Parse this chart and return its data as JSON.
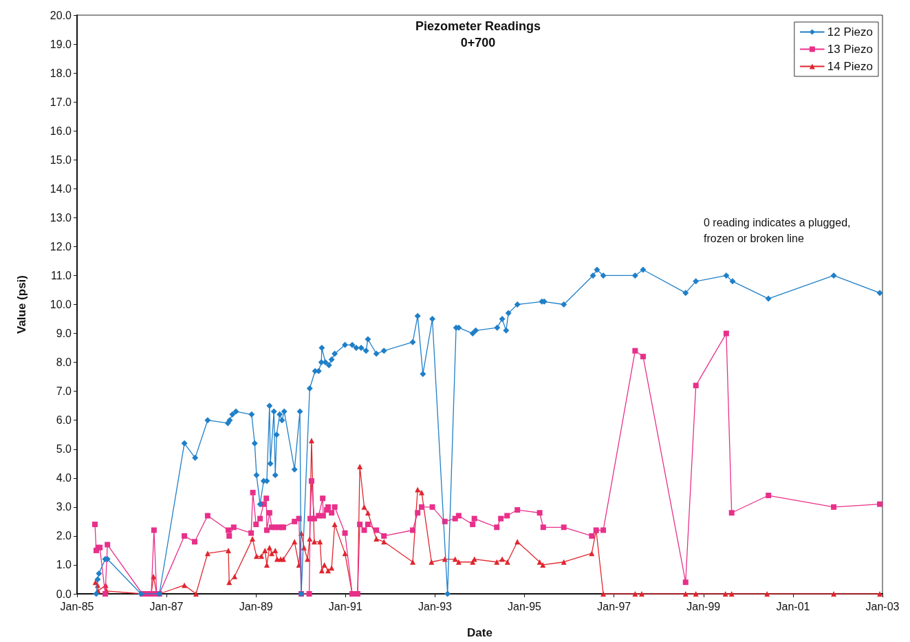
{
  "chart_data": {
    "type": "line",
    "title": "Piezometer Readings",
    "subtitle": "0+700",
    "xlabel": "Date",
    "ylabel": "Value (psi)",
    "annotations": [
      "0 reading indicates a plugged, frozen or broken line"
    ],
    "xlim": [
      "1985-01-01",
      "2003-01-01"
    ],
    "xticks": [
      {
        "value": "1985-01-01",
        "label": "Jan-85"
      },
      {
        "value": "1987-01-01",
        "label": "Jan-87"
      },
      {
        "value": "1989-01-01",
        "label": "Jan-89"
      },
      {
        "value": "1991-01-01",
        "label": "Jan-91"
      },
      {
        "value": "1993-01-01",
        "label": "Jan-93"
      },
      {
        "value": "1995-01-01",
        "label": "Jan-95"
      },
      {
        "value": "1997-01-01",
        "label": "Jan-97"
      },
      {
        "value": "1999-01-01",
        "label": "Jan-99"
      },
      {
        "value": "2001-01-01",
        "label": "Jan-01"
      },
      {
        "value": "2003-01-01",
        "label": "Jan-03"
      }
    ],
    "ylim": [
      0,
      20
    ],
    "yticks": [
      {
        "value": 0,
        "label": "0.0"
      },
      {
        "value": 1,
        "label": "1.0"
      },
      {
        "value": 2,
        "label": "2.0"
      },
      {
        "value": 3,
        "label": "3.0"
      },
      {
        "value": 4,
        "label": "4.0"
      },
      {
        "value": 5,
        "label": "5.0"
      },
      {
        "value": 6,
        "label": "6.0"
      },
      {
        "value": 7,
        "label": "7.0"
      },
      {
        "value": 8,
        "label": "8.0"
      },
      {
        "value": 9,
        "label": "9.0"
      },
      {
        "value": 10,
        "label": "10.0"
      },
      {
        "value": 11,
        "label": "11.0"
      },
      {
        "value": 12,
        "label": "12.0"
      },
      {
        "value": 13,
        "label": "13.0"
      },
      {
        "value": 14,
        "label": "14.0"
      },
      {
        "value": 15,
        "label": "15.0"
      },
      {
        "value": 16,
        "label": "16.0"
      },
      {
        "value": 17,
        "label": "17.0"
      },
      {
        "value": 18,
        "label": "18.0"
      },
      {
        "value": 19,
        "label": "19.0"
      },
      {
        "value": 20,
        "label": "20.0"
      }
    ],
    "grid": false,
    "legend": "top right",
    "line_style": "solid",
    "series": [
      {
        "name": "12 Piezo",
        "color": "#1f7fc8",
        "marker": "diamond",
        "x": [
          "1985-06-07",
          "1985-06-18",
          "1985-06-29",
          "1985-08-19",
          "1985-09-06",
          "1986-06-07",
          "1986-11-04",
          "1987-05-27",
          "1987-08-23",
          "1987-12-03",
          "1988-05-16",
          "1988-05-31",
          "1988-06-22",
          "1988-07-21",
          "1988-11-26",
          "1988-12-21",
          "1989-01-05",
          "1989-02-03",
          "1989-03-04",
          "1989-03-30",
          "1989-04-21",
          "1989-04-28",
          "1989-05-27",
          "1989-06-07",
          "1989-06-18",
          "1989-07-13",
          "1989-08-01",
          "1989-08-19",
          "1989-11-11",
          "1989-12-25",
          "1990-01-05",
          "1990-03-15",
          "1990-04-28",
          "1990-05-27",
          "1990-06-18",
          "1990-06-22",
          "1990-07-21",
          "1990-08-19",
          "1990-09-10",
          "1990-10-05",
          "1990-12-28",
          "1991-02-25",
          "1991-03-30",
          "1991-05-09",
          "1991-06-18",
          "1991-07-03",
          "1991-09-10",
          "1991-11-11",
          "1992-07-03",
          "1992-08-12",
          "1992-09-24",
          "1992-12-10",
          "1993-04-13",
          "1993-06-22",
          "1993-07-13",
          "1993-11-04",
          "1993-11-29",
          "1994-05-23",
          "1994-07-03",
          "1994-08-04",
          "1994-08-23",
          "1994-11-04",
          "1995-05-23",
          "1995-06-11",
          "1995-11-18",
          "1996-07-13",
          "1996-08-15",
          "1996-10-05",
          "1997-06-22",
          "1997-08-26",
          "1998-08-08",
          "1998-10-31",
          "1999-07-06",
          "1999-08-26",
          "2000-06-14",
          "2001-11-29",
          "2002-12-10"
        ],
        "values": [
          0,
          0.5,
          0.7,
          1.2,
          1.2,
          0,
          0,
          5.2,
          4.7,
          6.0,
          5.9,
          6.0,
          6.2,
          6.3,
          6.2,
          5.2,
          4.1,
          3.1,
          3.9,
          3.9,
          6.5,
          4.5,
          6.3,
          4.1,
          5.5,
          6.2,
          6.0,
          6.3,
          4.3,
          6.3,
          0,
          7.1,
          7.7,
          7.7,
          8.0,
          8.5,
          8.0,
          7.9,
          8.1,
          8.3,
          8.6,
          8.6,
          8.5,
          8.5,
          8.4,
          8.8,
          8.3,
          8.4,
          8.7,
          9.6,
          7.6,
          9.5,
          0,
          9.2,
          9.2,
          9.0,
          9.1,
          9.2,
          9.5,
          9.1,
          9.7,
          10.0,
          10.1,
          10.1,
          10.0,
          11.0,
          11.2,
          11.0,
          11.0,
          11.2,
          10.4,
          10.8,
          11.0,
          10.8,
          10.2,
          11.0,
          10.4
        ]
      },
      {
        "name": "13 Piezo",
        "color": "#e8308a",
        "marker": "square",
        "x": [
          "1985-05-27",
          "1985-06-07",
          "1985-06-22",
          "1985-07-06",
          "1985-08-19",
          "1985-09-06",
          "1986-06-18",
          "1986-07-17",
          "1986-08-30",
          "1986-09-21",
          "1986-10-13",
          "1986-11-04",
          "1987-05-27",
          "1987-08-19",
          "1987-12-03",
          "1988-05-20",
          "1988-05-27",
          "1988-07-03",
          "1988-11-22",
          "1988-12-06",
          "1989-01-01",
          "1989-02-03",
          "1989-03-04",
          "1989-03-26",
          "1989-03-30",
          "1989-04-21",
          "1989-05-09",
          "1989-06-07",
          "1989-07-03",
          "1989-08-01",
          "1989-08-12",
          "1989-11-11",
          "1989-12-17",
          "1990-01-05",
          "1990-03-11",
          "1990-03-19",
          "1990-03-30",
          "1990-04-21",
          "1990-05-27",
          "1990-06-29",
          "1990-07-03",
          "1990-08-01",
          "1990-08-12",
          "1990-09-10",
          "1990-10-05",
          "1990-12-28",
          "1991-02-25",
          "1991-04-10",
          "1991-04-28",
          "1991-06-03",
          "1991-07-03",
          "1991-09-10",
          "1991-11-11",
          "1992-07-03",
          "1992-08-12",
          "1992-09-14",
          "1992-12-10",
          "1993-03-22",
          "1993-06-14",
          "1993-07-13",
          "1993-11-04",
          "1993-11-18",
          "1994-05-20",
          "1994-06-22",
          "1994-08-12",
          "1994-11-04",
          "1995-05-05",
          "1995-06-03",
          "1995-11-18",
          "1996-07-03",
          "1996-08-08",
          "1996-10-05",
          "1997-06-22",
          "1997-08-26",
          "1998-08-08",
          "1998-10-31",
          "1999-07-06",
          "1999-08-19",
          "2000-06-14",
          "2001-11-29",
          "2002-12-10"
        ],
        "values": [
          2.4,
          1.5,
          1.6,
          1.6,
          0,
          1.7,
          0,
          0,
          0,
          2.2,
          0,
          0,
          2.0,
          1.8,
          2.7,
          2.2,
          2.0,
          2.3,
          2.1,
          3.5,
          2.4,
          2.6,
          3.1,
          3.3,
          2.2,
          2.8,
          2.3,
          2.3,
          2.3,
          2.3,
          2.3,
          2.5,
          2.6,
          0,
          0,
          2.6,
          3.9,
          2.6,
          2.7,
          3.3,
          2.7,
          2.9,
          3.0,
          2.8,
          3.0,
          2.1,
          0,
          0,
          2.4,
          2.2,
          2.4,
          2.2,
          2.0,
          2.2,
          2.8,
          3.0,
          3.0,
          2.5,
          2.6,
          2.7,
          2.4,
          2.6,
          2.3,
          2.6,
          2.7,
          2.9,
          2.8,
          2.3,
          2.3,
          2.0,
          2.2,
          2.2,
          8.4,
          8.2,
          0.4,
          7.2,
          9.0,
          2.8,
          3.4,
          3.0,
          3.1
        ]
      },
      {
        "name": "14 Piezo",
        "color": "#e0252e",
        "marker": "triangle",
        "x": [
          "1985-05-31",
          "1985-06-18",
          "1985-06-22",
          "1985-08-23",
          "1985-08-30",
          "1986-06-18",
          "1986-07-17",
          "1986-08-30",
          "1986-09-17",
          "1986-10-13",
          "1986-11-04",
          "1987-05-27",
          "1987-08-30",
          "1987-12-03",
          "1988-05-20",
          "1988-05-27",
          "1988-07-10",
          "1988-12-03",
          "1989-01-05",
          "1989-02-14",
          "1989-03-15",
          "1989-03-30",
          "1989-04-21",
          "1989-05-09",
          "1989-06-07",
          "1989-06-22",
          "1989-07-21",
          "1989-08-12",
          "1989-11-11",
          "1989-12-17",
          "1990-01-05",
          "1990-01-27",
          "1990-02-25",
          "1990-03-15",
          "1990-03-30",
          "1990-04-21",
          "1990-06-07",
          "1990-06-22",
          "1990-07-13",
          "1990-08-12",
          "1990-09-10",
          "1990-10-05",
          "1990-12-28",
          "1991-02-25",
          "1991-04-10",
          "1991-04-28",
          "1991-06-03",
          "1991-07-03",
          "1991-09-10",
          "1991-11-11",
          "1992-07-03",
          "1992-08-12",
          "1992-09-14",
          "1992-12-03",
          "1993-03-22",
          "1993-06-14",
          "1993-07-13",
          "1993-11-04",
          "1993-11-18",
          "1994-05-20",
          "1994-07-03",
          "1994-08-15",
          "1994-11-04",
          "1995-05-05",
          "1995-05-31",
          "1995-11-18",
          "1996-07-03",
          "1996-08-08",
          "1996-10-05",
          "1997-06-22",
          "1997-08-15",
          "1998-08-08",
          "1998-10-31",
          "1999-06-29",
          "1999-08-19",
          "2000-06-03",
          "2001-11-29",
          "2002-12-10"
        ],
        "values": [
          0.4,
          0.3,
          0.1,
          0.3,
          0.1,
          0,
          0,
          0,
          0.6,
          0,
          0,
          0.3,
          0,
          1.4,
          1.5,
          0.4,
          0.6,
          1.9,
          1.3,
          1.3,
          1.5,
          1.0,
          1.6,
          1.4,
          1.5,
          1.2,
          1.2,
          1.2,
          1.8,
          1.0,
          2.1,
          1.6,
          1.2,
          1.9,
          5.3,
          1.8,
          1.8,
          0.8,
          1.0,
          0.8,
          0.9,
          2.4,
          1.4,
          0,
          0,
          4.4,
          3.0,
          2.8,
          1.9,
          1.8,
          1.1,
          3.6,
          3.5,
          1.1,
          1.2,
          1.2,
          1.1,
          1.1,
          1.2,
          1.1,
          1.2,
          1.1,
          1.8,
          1.1,
          1.0,
          1.1,
          1.4,
          2.2,
          0,
          0,
          0,
          0,
          0,
          0,
          0,
          0,
          0,
          0
        ]
      }
    ]
  }
}
